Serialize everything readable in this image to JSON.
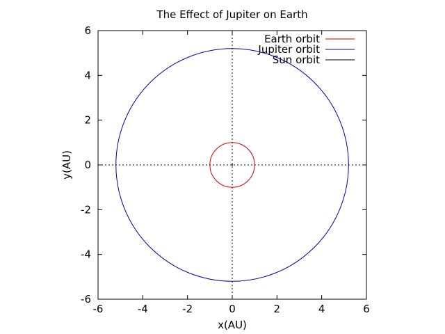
{
  "chart_data": {
    "type": "line",
    "title": "The Effect of Jupiter on Earth",
    "xlabel": "x(AU)",
    "ylabel": "y(AU)",
    "xlim": [
      -6,
      6
    ],
    "ylim": [
      -6,
      6
    ],
    "x_ticks": [
      -6,
      -4,
      -2,
      0,
      2,
      4,
      6
    ],
    "y_ticks": [
      -6,
      -4,
      -2,
      0,
      2,
      4,
      6
    ],
    "zero_axes": true,
    "grid": false,
    "legend_position": "top-right",
    "series": [
      {
        "name": "Earth orbit",
        "color": "#cc0000",
        "shape": "circle",
        "center": [
          0,
          0
        ],
        "radius": 1.0
      },
      {
        "name": "Jupiter orbit",
        "color": "#0000a0",
        "shape": "circle",
        "center": [
          0,
          0
        ],
        "radius": 5.2
      },
      {
        "name": "Sun orbit",
        "color": "#000000",
        "shape": "point",
        "center": [
          0,
          0
        ],
        "radius": 0.005
      }
    ]
  }
}
